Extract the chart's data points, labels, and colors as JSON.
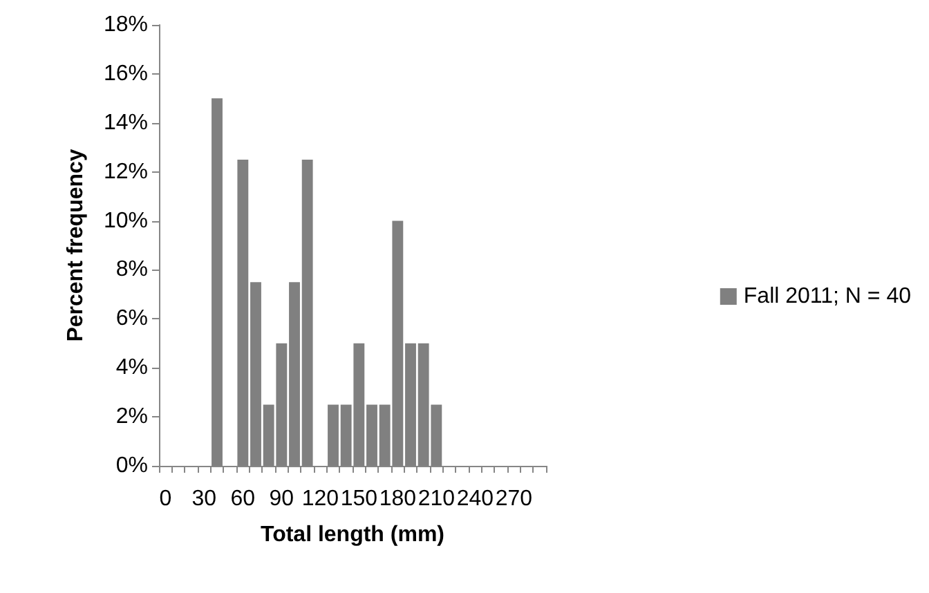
{
  "chart_data": {
    "type": "bar",
    "xlabel": "Total length (mm)",
    "ylabel": "Percent frequency",
    "categories": [
      "0",
      null,
      null,
      "30",
      null,
      null,
      "60",
      null,
      null,
      "90",
      null,
      null,
      "120",
      null,
      null,
      "150",
      null,
      null,
      "180",
      null,
      null,
      "210",
      null,
      null,
      "240",
      null,
      null,
      "270",
      null,
      null
    ],
    "series": [
      {
        "name": "Fall 2011; N = 40",
        "color": "#808080",
        "values": [
          0,
          0,
          0,
          0,
          15,
          0,
          12.5,
          7.5,
          2.5,
          5,
          7.5,
          12.5,
          0,
          2.5,
          2.5,
          5,
          2.5,
          2.5,
          10,
          5,
          5,
          2.5,
          0,
          0,
          0,
          0,
          0,
          0,
          0,
          0
        ]
      }
    ],
    "ylim": [
      0,
      18
    ],
    "yticks": [
      {
        "value": 0,
        "label": "0%"
      },
      {
        "value": 2,
        "label": "2%"
      },
      {
        "value": 4,
        "label": "4%"
      },
      {
        "value": 6,
        "label": "6%"
      },
      {
        "value": 8,
        "label": "8%"
      },
      {
        "value": 10,
        "label": "10%"
      },
      {
        "value": 12,
        "label": "12%"
      },
      {
        "value": 14,
        "label": "14%"
      },
      {
        "value": 16,
        "label": "16%"
      },
      {
        "value": 18,
        "label": "18%"
      }
    ],
    "grid": false,
    "legend": "right"
  }
}
